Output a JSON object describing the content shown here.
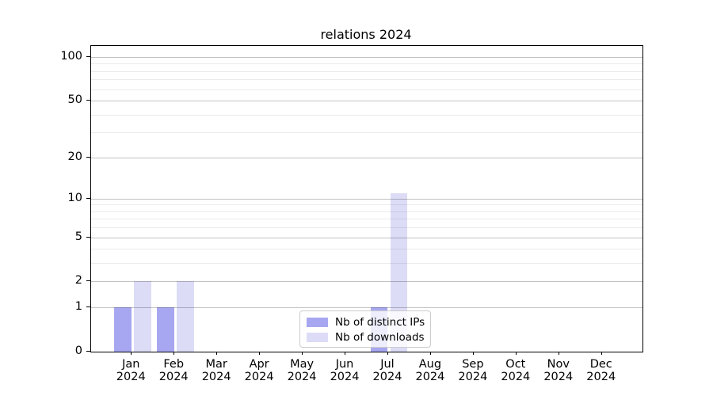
{
  "chart_data": {
    "type": "bar",
    "title": "relations 2024",
    "categories": [
      "Jan",
      "Feb",
      "Mar",
      "Apr",
      "May",
      "Jun",
      "Jul",
      "Aug",
      "Sep",
      "Oct",
      "Nov",
      "Dec"
    ],
    "category_year": "2024",
    "series": [
      {
        "name": "Nb of distinct IPs",
        "color": "#a7a7f1",
        "values": [
          1,
          1,
          0,
          0,
          0,
          0,
          1,
          0,
          0,
          0,
          0,
          0
        ]
      },
      {
        "name": "Nb of downloads",
        "color": "#dcdcf7",
        "values": [
          2,
          2,
          0,
          0,
          0,
          0,
          11,
          0,
          0,
          0,
          0,
          0
        ]
      }
    ],
    "y_axis": {
      "scale": "log1p",
      "ticks": [
        0,
        1,
        2,
        5,
        10,
        20,
        50,
        100
      ],
      "minor_gridlines": [
        3,
        4,
        6,
        7,
        8,
        9,
        30,
        40,
        60,
        70,
        80,
        90
      ],
      "ylim": [
        0,
        119
      ]
    },
    "x_axis": {
      "ticks_at": "category-centers"
    },
    "legend": {
      "position": "lower-center"
    },
    "grid": true,
    "colors": {
      "background": "#ffffff",
      "spine": "#000000",
      "major_grid": "#c3c3c3",
      "minor_grid": "#eaeaea"
    }
  }
}
